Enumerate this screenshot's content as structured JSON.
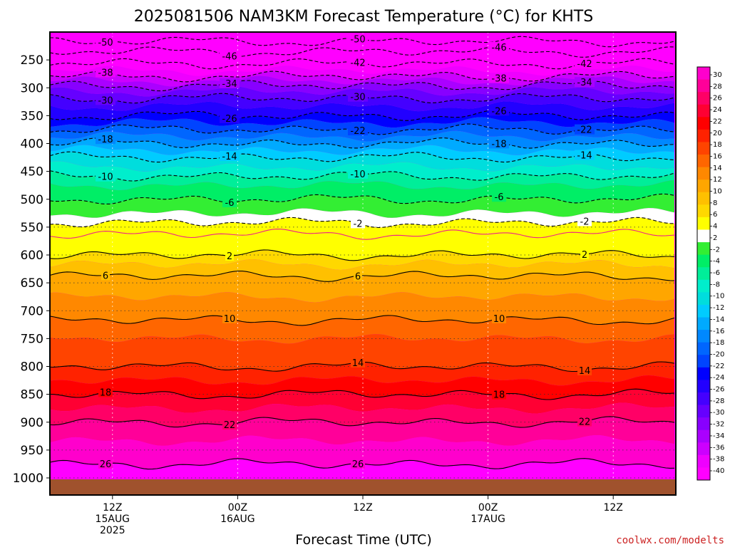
{
  "chart_data": {
    "type": "heatmap",
    "title": "2025081506 NAM3KM Forecast Temperature (°C) for KHTS",
    "xlabel": "Forecast Time (UTC)",
    "ylabel": "",
    "credit": "coolwx.com/modelts",
    "y_ticks": [
      250,
      300,
      350,
      400,
      450,
      500,
      550,
      600,
      650,
      700,
      750,
      800,
      850,
      900,
      950,
      1000
    ],
    "y_range": [
      200,
      1000
    ],
    "x_range_hours": [
      6,
      66
    ],
    "x_ticks": [
      {
        "hour": 12,
        "lines": [
          "12Z",
          "15AUG",
          "2025"
        ]
      },
      {
        "hour": 24,
        "lines": [
          "00Z",
          "16AUG"
        ]
      },
      {
        "hour": 36,
        "lines": [
          "12Z"
        ]
      },
      {
        "hour": 48,
        "lines": [
          "00Z",
          "17AUG"
        ]
      },
      {
        "hour": 60,
        "lines": [
          "12Z"
        ]
      }
    ],
    "colorbar": {
      "labels": [
        "30",
        "28",
        "26",
        "24",
        "22",
        "20",
        "18",
        "16",
        "14",
        "12",
        "10",
        "8",
        "6",
        "4",
        "2",
        "-2",
        "-4",
        "-6",
        "-8",
        "-10",
        "-12",
        "-14",
        "-16",
        "-18",
        "-20",
        "-22",
        "-24",
        "-26",
        "-28",
        "-30",
        "-32",
        "-34",
        "-36",
        "-38",
        "-40"
      ],
      "colors": [
        "#ff00cc",
        "#ff0099",
        "#ff0066",
        "#ff0033",
        "#ff0000",
        "#ff2200",
        "#ff4400",
        "#ff6600",
        "#ff8800",
        "#ffa600",
        "#ffc000",
        "#ffd800",
        "#ffff00",
        "#ffffff",
        "#33ee33",
        "#00ee66",
        "#00ee99",
        "#00eecc",
        "#00dddd",
        "#00ccff",
        "#00aaff",
        "#0088ff",
        "#0066ff",
        "#0044ff",
        "#0000ff",
        "#2200ff",
        "#4400ff",
        "#6600ff",
        "#8800ff",
        "#aa00ff",
        "#cc00ff",
        "#ee00ff",
        "#ff00ff"
      ]
    },
    "profile": [
      [
        200,
        -54
      ],
      [
        225,
        -48
      ],
      [
        250,
        -43
      ],
      [
        275,
        -39
      ],
      [
        300,
        -33
      ],
      [
        325,
        -29
      ],
      [
        350,
        -26
      ],
      [
        375,
        -22
      ],
      [
        400,
        -18
      ],
      [
        425,
        -14
      ],
      [
        450,
        -11
      ],
      [
        475,
        -8
      ],
      [
        500,
        -6
      ],
      [
        525,
        -4
      ],
      [
        550,
        -1
      ],
      [
        575,
        1
      ],
      [
        600,
        2
      ],
      [
        625,
        5
      ],
      [
        650,
        7
      ],
      [
        700,
        9
      ],
      [
        750,
        12
      ],
      [
        800,
        14
      ],
      [
        850,
        18
      ],
      [
        900,
        22
      ],
      [
        950,
        25
      ],
      [
        1000,
        27
      ]
    ],
    "contours": [
      {
        "value": -50,
        "label": "-50",
        "dashed": true
      },
      {
        "value": -46,
        "label": "-46",
        "dashed": true
      },
      {
        "value": -42,
        "label": "-42",
        "dashed": true
      },
      {
        "value": -38,
        "label": "-38",
        "dashed": true
      },
      {
        "value": -34,
        "label": "-34",
        "dashed": true
      },
      {
        "value": -30,
        "label": "-30",
        "dashed": true
      },
      {
        "value": -26,
        "label": "-26",
        "dashed": true
      },
      {
        "value": -22,
        "label": "-22",
        "dashed": true
      },
      {
        "value": -18,
        "label": "-18",
        "dashed": true
      },
      {
        "value": -14,
        "label": "-14",
        "dashed": true
      },
      {
        "value": -10,
        "label": "-10",
        "dashed": true
      },
      {
        "value": -6,
        "label": "-6",
        "dashed": true
      },
      {
        "value": -2,
        "label": "-2",
        "dashed": true
      },
      {
        "value": 0,
        "label": "",
        "dashed": false,
        "color": "#ee2288"
      },
      {
        "value": 2,
        "label": "2",
        "dashed": false
      },
      {
        "value": 6,
        "label": "6",
        "dashed": false
      },
      {
        "value": 10,
        "label": "10",
        "dashed": false
      },
      {
        "value": 14,
        "label": "14",
        "dashed": false
      },
      {
        "value": 18,
        "label": "18",
        "dashed": false
      },
      {
        "value": 22,
        "label": "22",
        "dashed": false
      },
      {
        "value": 26,
        "label": "26",
        "dashed": false
      }
    ],
    "ground_color": "#a0522d"
  }
}
